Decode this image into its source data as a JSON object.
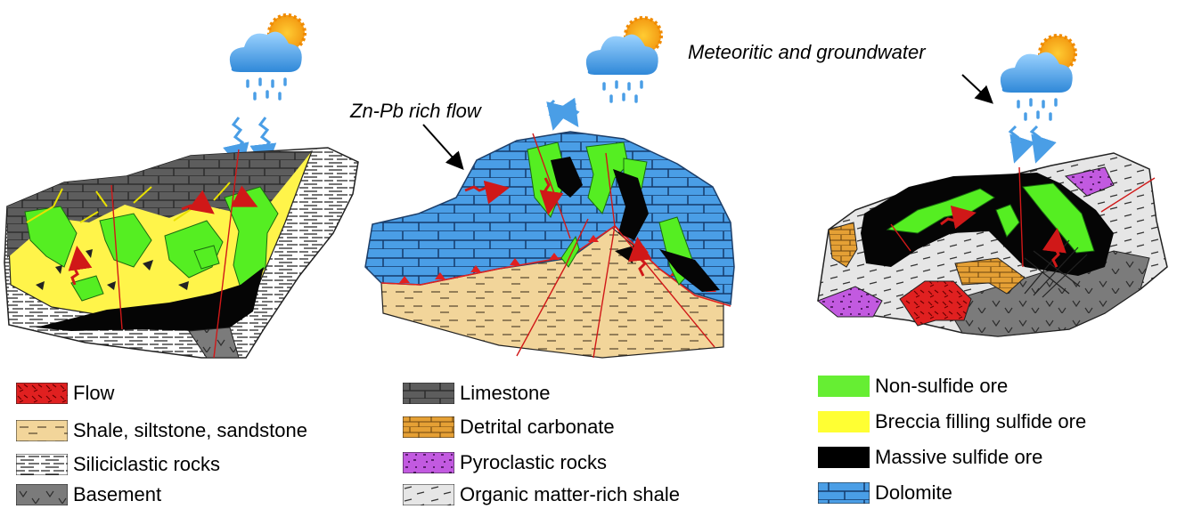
{
  "annotations": {
    "zn_pb_flow": "Zn-Pb rich flow",
    "meteoritic": "Meteoritic and groundwater"
  },
  "legend": {
    "col1": [
      {
        "label": "Flow",
        "icon": "flow-pattern",
        "color": "#e02020"
      },
      {
        "label": "Shale, siltstone, sandstone",
        "icon": "shale-pattern",
        "color": "#f5e6a0"
      },
      {
        "label": "Siliciclastic rocks",
        "icon": "siliciclastic-pattern",
        "color": "#ffffff"
      },
      {
        "label": "Basement",
        "icon": "basement-pattern",
        "color": "#808080"
      }
    ],
    "col2": [
      {
        "label": "Limestone",
        "icon": "limestone-pattern",
        "color": "#6e6e6e"
      },
      {
        "label": "Detrital carbonate",
        "icon": "detrital-carbonate-pattern",
        "color": "#e0a030"
      },
      {
        "label": "Pyroclastic rocks",
        "icon": "pyroclastic-pattern",
        "color": "#c060e0"
      },
      {
        "label": "Organic matter-rich shale",
        "icon": "organic-shale-pattern",
        "color": "#e8e8e8"
      }
    ],
    "col3": [
      {
        "label": "Non-sulfide ore",
        "icon": "non-sulfide-swatch",
        "color": "#66ee33"
      },
      {
        "label": "Breccia filling sulfide ore",
        "icon": "breccia-swatch",
        "color": "#ffff33"
      },
      {
        "label": "Massive sulfide ore",
        "icon": "massive-sulfide-swatch",
        "color": "#000000"
      },
      {
        "label": "Dolomite",
        "icon": "dolomite-pattern",
        "color": "#4d9fe8"
      }
    ]
  }
}
